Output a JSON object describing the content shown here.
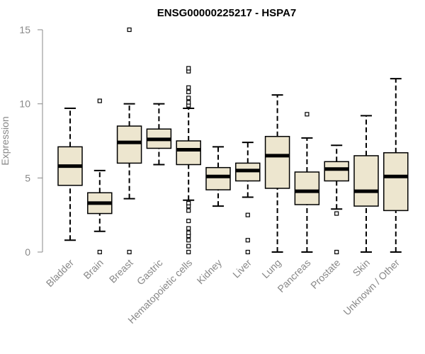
{
  "chart_data": {
    "type": "boxplot",
    "title": "ENSG00000225217 - HSPA7",
    "xlabel": "",
    "ylabel": "Expression",
    "ylim": [
      0,
      15
    ],
    "yticks": [
      0,
      5,
      10,
      15
    ],
    "grid": false,
    "legend": "none",
    "colors": {
      "box_fill": "#ede6cf",
      "stroke": "#000000",
      "axis": "#888888"
    },
    "categories": [
      "Bladder",
      "Brain",
      "Breast",
      "Gastric",
      "Hematopoietic cells",
      "Kidney",
      "Liver",
      "Lung",
      "Pancreas",
      "Prostate",
      "Skin",
      "Unknown / Other"
    ],
    "boxes": [
      {
        "category": "Bladder",
        "whisker_low": 0.8,
        "q1": 4.5,
        "median": 5.8,
        "q3": 7.1,
        "whisker_high": 9.7,
        "outliers": []
      },
      {
        "category": "Brain",
        "whisker_low": 1.4,
        "q1": 2.6,
        "median": 3.3,
        "q3": 4.0,
        "whisker_high": 5.5,
        "outliers": [
          0.0,
          10.2
        ]
      },
      {
        "category": "Breast",
        "whisker_low": 3.6,
        "q1": 6.0,
        "median": 7.4,
        "q3": 8.5,
        "whisker_high": 10.0,
        "outliers": [
          0.0,
          15.0
        ]
      },
      {
        "category": "Gastric",
        "whisker_low": 5.9,
        "q1": 7.0,
        "median": 7.6,
        "q3": 8.3,
        "whisker_high": 10.0,
        "outliers": []
      },
      {
        "category": "Hematopoietic cells",
        "whisker_low": 3.5,
        "q1": 5.9,
        "median": 6.9,
        "q3": 7.5,
        "whisker_high": 9.7,
        "outliers": [
          0.0,
          0.4,
          0.8,
          1.1,
          1.3,
          1.6,
          2.1,
          2.8,
          3.1,
          3.3,
          9.9,
          10.1,
          10.4,
          10.8,
          11.1,
          12.2,
          12.4
        ]
      },
      {
        "category": "Kidney",
        "whisker_low": 3.1,
        "q1": 4.2,
        "median": 5.1,
        "q3": 5.7,
        "whisker_high": 7.1,
        "outliers": []
      },
      {
        "category": "Liver",
        "whisker_low": 3.7,
        "q1": 4.8,
        "median": 5.5,
        "q3": 6.0,
        "whisker_high": 7.4,
        "outliers": [
          0.0,
          0.8,
          2.5
        ]
      },
      {
        "category": "Lung",
        "whisker_low": 0.0,
        "q1": 4.3,
        "median": 6.5,
        "q3": 7.8,
        "whisker_high": 10.6,
        "outliers": []
      },
      {
        "category": "Pancreas",
        "whisker_low": 0.0,
        "q1": 3.2,
        "median": 4.1,
        "q3": 5.4,
        "whisker_high": 7.7,
        "outliers": [
          9.3
        ]
      },
      {
        "category": "Prostate",
        "whisker_low": 2.9,
        "q1": 4.8,
        "median": 5.6,
        "q3": 6.1,
        "whisker_high": 7.2,
        "outliers": [
          0.0,
          2.6
        ]
      },
      {
        "category": "Skin",
        "whisker_low": 0.0,
        "q1": 3.1,
        "median": 4.1,
        "q3": 6.5,
        "whisker_high": 9.2,
        "outliers": []
      },
      {
        "category": "Unknown / Other",
        "whisker_low": 0.0,
        "q1": 2.8,
        "median": 5.1,
        "q3": 6.7,
        "whisker_high": 11.7,
        "outliers": []
      }
    ]
  }
}
